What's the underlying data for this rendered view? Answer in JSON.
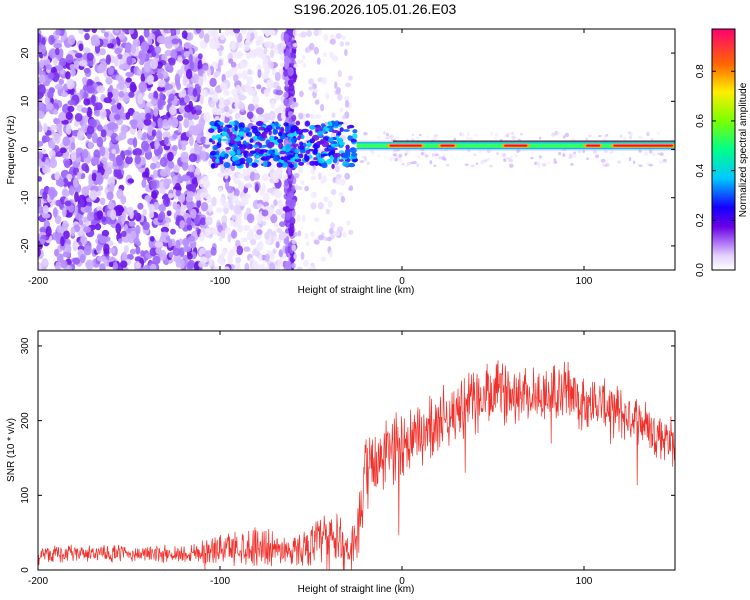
{
  "title": "S196.2026.105.01.26.E03",
  "chart_data": [
    {
      "type": "heatmap",
      "xlabel": "Height of straight line (km)",
      "ylabel": "Frequency (Hz)",
      "xlim": [
        -200,
        150
      ],
      "ylim": [
        -25,
        25
      ],
      "xticks": [
        -200,
        -100,
        0,
        100
      ],
      "xtick_labels": [
        "-200",
        "-100",
        "0",
        "100"
      ],
      "yticks": [
        -20,
        -10,
        0,
        10,
        20
      ],
      "ytick_labels": [
        "-20",
        "-10",
        "0",
        "10",
        "20"
      ],
      "colorbar": {
        "label": "Normalized spectral amplitude",
        "range": [
          0.0,
          0.97
        ],
        "ticks": [
          0.0,
          0.2,
          0.4,
          0.6,
          0.8
        ],
        "tick_labels": [
          "0.0",
          "0.2",
          "0.4",
          "0.6",
          "0.8"
        ]
      },
      "bands": [
        {
          "x": [
            -200,
            -110
          ],
          "y": [
            -25,
            25
          ],
          "level": 0.12,
          "note": "dense broadband noise"
        },
        {
          "x": [
            -110,
            -60
          ],
          "y": [
            -25,
            25
          ],
          "level": 0.06,
          "note": "moderate broadband noise"
        },
        {
          "x": [
            -60,
            -30
          ],
          "y": [
            -25,
            25
          ],
          "level": 0.03,
          "note": "sparse noise"
        },
        {
          "x": [
            -105,
            -25
          ],
          "y": [
            -4,
            6
          ],
          "level": 0.3,
          "note": "concentrated energy near 0 Hz"
        },
        {
          "x": [
            -25,
            150
          ],
          "y": [
            -1.5,
            1.5
          ],
          "level": 0.95,
          "note": "narrow line at 0 Hz"
        }
      ],
      "line_center_hz": 0.8
    },
    {
      "type": "line",
      "xlabel": "Height of straight line (km)",
      "ylabel": "SNR (10 * v/v)",
      "xlim": [
        -200,
        150
      ],
      "ylim": [
        0,
        320
      ],
      "xticks": [
        -200,
        -100,
        0,
        100
      ],
      "xtick_labels": [
        "-200",
        "-100",
        "0",
        "100"
      ],
      "yticks": [
        0,
        100,
        200,
        300
      ],
      "ytick_labels": [
        "0",
        "100",
        "200",
        "300"
      ],
      "color": "#f0302a",
      "envelope_x": [
        -200,
        -120,
        -100,
        -80,
        -60,
        -40,
        -30,
        -25,
        -20,
        -10,
        0,
        10,
        20,
        30,
        40,
        50,
        60,
        70,
        80,
        90,
        100,
        110,
        120,
        130,
        140,
        150
      ],
      "envelope_y": [
        22,
        22,
        28,
        32,
        25,
        45,
        30,
        35,
        130,
        150,
        170,
        180,
        200,
        215,
        225,
        235,
        240,
        235,
        235,
        240,
        225,
        220,
        210,
        200,
        185,
        170
      ],
      "noise_amplitude": [
        12,
        12,
        22,
        28,
        20,
        40,
        35,
        30,
        55,
        50,
        50,
        45,
        45,
        45,
        45,
        45,
        45,
        40,
        40,
        45,
        40,
        38,
        38,
        35,
        35,
        35
      ]
    }
  ]
}
